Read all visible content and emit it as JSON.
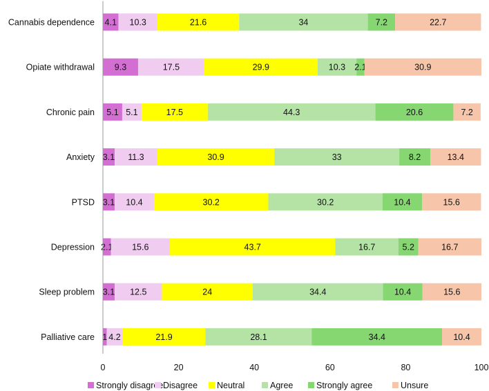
{
  "chart_data": {
    "type": "bar",
    "orientation": "horizontal",
    "stacked": true,
    "categories": [
      "Cannabis dependence",
      "Opiate withdrawal",
      "Chronic pain",
      "Anxiety",
      "PTSD",
      "Depression",
      "Sleep problem",
      "Palliative care"
    ],
    "series": [
      {
        "name": "Strongly disagree",
        "color": "#d36fd3",
        "values": [
          4.1,
          9.3,
          5.1,
          3.1,
          3.1,
          2.1,
          3.1,
          1
        ],
        "labels": [
          "4.1",
          "9.3",
          "5.1",
          "3.1",
          "3.1",
          "2.1",
          "3.1",
          "1"
        ]
      },
      {
        "name": "Disagree",
        "color": "#f0cdf0",
        "values": [
          10.3,
          17.5,
          5.1,
          11.3,
          10.4,
          15.6,
          12.5,
          4.2
        ],
        "labels": [
          "10.3",
          "17.5",
          "5.1",
          "11.3",
          "10.4",
          "15.6",
          "12.5",
          "4.2"
        ]
      },
      {
        "name": "Neutral",
        "color": "#ffff00",
        "values": [
          21.6,
          29.9,
          17.5,
          30.9,
          30.2,
          43.7,
          24,
          21.9
        ],
        "labels": [
          "21.6",
          "29.9",
          "17.5",
          "30.9",
          "30.2",
          "43.7",
          "24",
          "21.9"
        ]
      },
      {
        "name": "Agree",
        "color": "#b5e3a6",
        "values": [
          34,
          10.3,
          44.3,
          33,
          30.2,
          16.7,
          34.4,
          28.1
        ],
        "labels": [
          "34",
          "10.3",
          "44.3",
          "33",
          "30.2",
          "16.7",
          "34.4",
          "28.1"
        ]
      },
      {
        "name": "Strongly agree",
        "color": "#86d672",
        "values": [
          7.2,
          2.1,
          20.6,
          8.2,
          10.4,
          5.2,
          10.4,
          34.4
        ],
        "labels": [
          "7.2",
          "2.1",
          "20.6",
          "8.2",
          "10.4",
          "5.2",
          "10.4",
          "34.4"
        ]
      },
      {
        "name": "Unsure",
        "color": "#f7c6aa",
        "values": [
          22.7,
          30.9,
          7.2,
          13.4,
          15.6,
          16.7,
          15.6,
          10.4
        ],
        "labels": [
          "22.7",
          "30.9",
          "7.2",
          "13.4",
          "15.6",
          "16.7",
          "15.6",
          "10.4"
        ]
      }
    ],
    "xlim": [
      0,
      100
    ],
    "xticks": [
      "0",
      "20",
      "40",
      "60",
      "80",
      "100"
    ],
    "grid": false,
    "legend_position": "bottom"
  }
}
